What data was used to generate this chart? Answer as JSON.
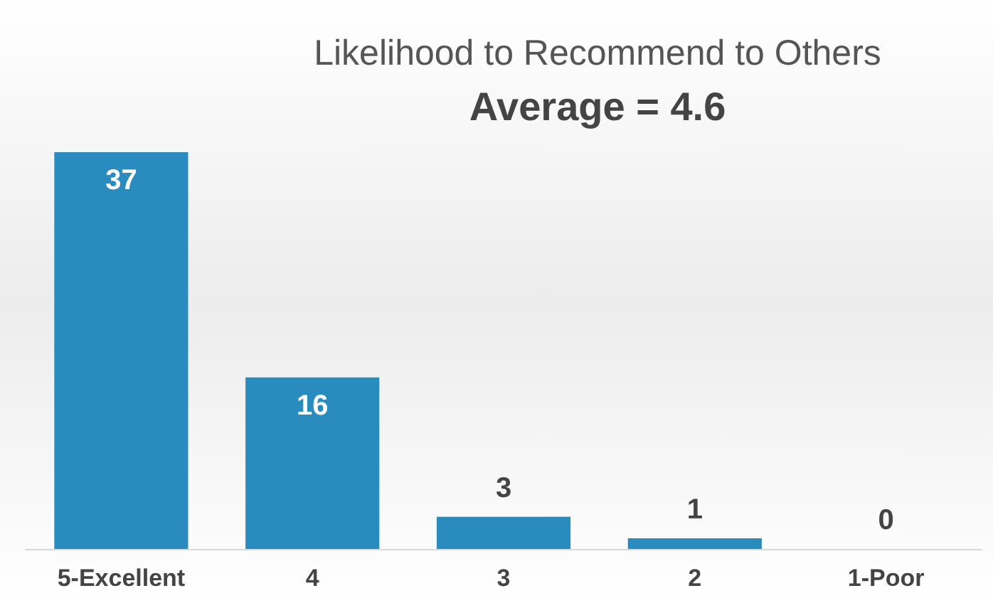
{
  "chart_data": {
    "type": "bar",
    "title": "Likelihood to Recommend to Others",
    "subtitle": "Average = 4.6",
    "categories": [
      "5-Excellent",
      "4",
      "3",
      "2",
      "1-Poor"
    ],
    "values": [
      37,
      16,
      3,
      1,
      0
    ],
    "color": "#2a8bbf",
    "data_labels": true
  }
}
